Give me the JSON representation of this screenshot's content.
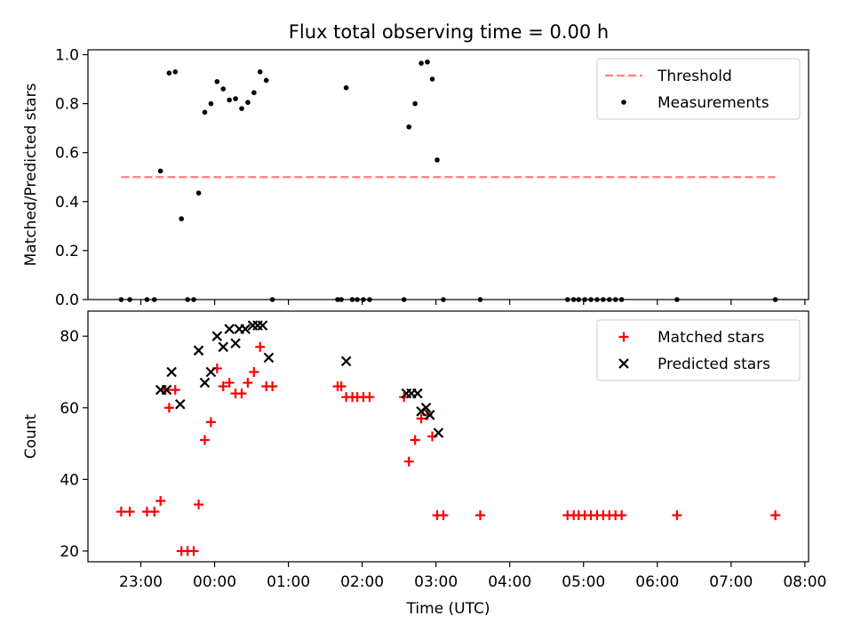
{
  "title": "Flux total observing time = 0.00 h",
  "chart_data": [
    {
      "type": "line+scatter",
      "ylabel": "Matched/Predicted stars",
      "xlabel": "",
      "xlim": [
        "22:17",
        "08:03"
      ],
      "ylim": [
        0,
        1.02
      ],
      "yticks": [
        0.0,
        0.2,
        0.4,
        0.6,
        0.8,
        1.0
      ],
      "ytick_labels": [
        "0.0",
        "0.2",
        "0.4",
        "0.6",
        "0.8",
        "1.0"
      ],
      "legend": {
        "placement": "top-right",
        "entries": [
          "Threshold",
          "Measurements"
        ]
      },
      "series": [
        {
          "name": "Threshold",
          "style": "dashed-line",
          "color": "#ff7f7f",
          "points": [
            [
              "22:44",
              0.5
            ],
            [
              "07:36",
              0.5
            ]
          ]
        },
        {
          "name": "Measurements",
          "style": "dot",
          "color": "#000000",
          "points": [
            [
              "22:44",
              0.0
            ],
            [
              "22:51",
              0.0
            ],
            [
              "23:05",
              0.0
            ],
            [
              "23:11",
              0.0
            ],
            [
              "23:16",
              0.525
            ],
            [
              "23:23",
              0.925
            ],
            [
              "23:28",
              0.93
            ],
            [
              "23:33",
              0.33
            ],
            [
              "23:38",
              0.0
            ],
            [
              "23:43",
              0.0
            ],
            [
              "23:47",
              0.435
            ],
            [
              "23:52",
              0.765
            ],
            [
              "23:57",
              0.8
            ],
            [
              "00:02",
              0.89
            ],
            [
              "00:07",
              0.86
            ],
            [
              "00:12",
              0.815
            ],
            [
              "00:17",
              0.82
            ],
            [
              "00:22",
              0.78
            ],
            [
              "00:27",
              0.805
            ],
            [
              "00:32",
              0.845
            ],
            [
              "00:37",
              0.93
            ],
            [
              "00:42",
              0.895
            ],
            [
              "00:47",
              0.0
            ],
            [
              "01:40",
              0.0
            ],
            [
              "01:43",
              0.0
            ],
            [
              "01:47",
              0.865
            ],
            [
              "01:52",
              0.0
            ],
            [
              "01:56",
              0.0
            ],
            [
              "02:01",
              0.0
            ],
            [
              "02:06",
              0.0
            ],
            [
              "02:34",
              0.0
            ],
            [
              "02:38",
              0.705
            ],
            [
              "02:43",
              0.8
            ],
            [
              "02:48",
              0.965
            ],
            [
              "02:53",
              0.97
            ],
            [
              "02:57",
              0.9
            ],
            [
              "03:01",
              0.57
            ],
            [
              "03:06",
              0.0
            ],
            [
              "03:36",
              0.0
            ],
            [
              "04:47",
              0.0
            ],
            [
              "04:52",
              0.0
            ],
            [
              "04:56",
              0.0
            ],
            [
              "05:01",
              0.0
            ],
            [
              "05:06",
              0.0
            ],
            [
              "05:11",
              0.0
            ],
            [
              "05:16",
              0.0
            ],
            [
              "05:21",
              0.0
            ],
            [
              "05:26",
              0.0
            ],
            [
              "05:31",
              0.0
            ],
            [
              "06:16",
              0.0
            ],
            [
              "07:36",
              0.0
            ]
          ]
        }
      ]
    },
    {
      "type": "scatter",
      "xlabel": "Time (UTC)",
      "ylabel": "Count",
      "xlim": [
        "22:17",
        "08:03"
      ],
      "ylim": [
        17,
        87
      ],
      "yticks": [
        20,
        40,
        60,
        80
      ],
      "ytick_labels": [
        "20",
        "40",
        "60",
        "80"
      ],
      "xticks": [
        "23:00",
        "00:00",
        "01:00",
        "02:00",
        "03:00",
        "04:00",
        "05:00",
        "06:00",
        "07:00",
        "08:00"
      ],
      "legend": {
        "placement": "top-right",
        "entries": [
          "Matched stars",
          "Predicted stars"
        ]
      },
      "series": [
        {
          "name": "Matched stars",
          "marker": "plus",
          "color": "#ff0000",
          "points": [
            [
              "22:44",
              31
            ],
            [
              "22:51",
              31
            ],
            [
              "23:05",
              31
            ],
            [
              "23:11",
              31
            ],
            [
              "23:16",
              34
            ],
            [
              "23:20",
              65
            ],
            [
              "23:23",
              60
            ],
            [
              "23:28",
              65
            ],
            [
              "23:33",
              20
            ],
            [
              "23:38",
              20
            ],
            [
              "23:43",
              20
            ],
            [
              "23:47",
              33
            ],
            [
              "23:52",
              51
            ],
            [
              "23:57",
              56
            ],
            [
              "00:02",
              71
            ],
            [
              "00:07",
              66
            ],
            [
              "00:12",
              67
            ],
            [
              "00:17",
              64
            ],
            [
              "00:22",
              64
            ],
            [
              "00:27",
              67
            ],
            [
              "00:32",
              70
            ],
            [
              "00:37",
              77
            ],
            [
              "00:42",
              66
            ],
            [
              "00:47",
              66
            ],
            [
              "01:40",
              66
            ],
            [
              "01:43",
              66
            ],
            [
              "01:47",
              63
            ],
            [
              "01:52",
              63
            ],
            [
              "01:56",
              63
            ],
            [
              "02:01",
              63
            ],
            [
              "02:06",
              63
            ],
            [
              "02:34",
              63
            ],
            [
              "02:38",
              45
            ],
            [
              "02:43",
              51
            ],
            [
              "02:48",
              57
            ],
            [
              "02:53",
              58
            ],
            [
              "02:57",
              52
            ],
            [
              "03:01",
              30
            ],
            [
              "03:06",
              30
            ],
            [
              "03:36",
              30
            ],
            [
              "04:47",
              30
            ],
            [
              "04:52",
              30
            ],
            [
              "04:56",
              30
            ],
            [
              "05:01",
              30
            ],
            [
              "05:06",
              30
            ],
            [
              "05:11",
              30
            ],
            [
              "05:16",
              30
            ],
            [
              "05:21",
              30
            ],
            [
              "05:26",
              30
            ],
            [
              "05:31",
              30
            ],
            [
              "06:16",
              30
            ],
            [
              "07:36",
              30
            ]
          ]
        },
        {
          "name": "Predicted stars",
          "marker": "x",
          "color": "#000000",
          "points": [
            [
              "23:16",
              65
            ],
            [
              "23:21",
              65
            ],
            [
              "23:25",
              70
            ],
            [
              "23:32",
              61
            ],
            [
              "23:47",
              76
            ],
            [
              "23:52",
              67
            ],
            [
              "23:57",
              70
            ],
            [
              "00:02",
              80
            ],
            [
              "00:07",
              77
            ],
            [
              "00:12",
              82
            ],
            [
              "00:17",
              78
            ],
            [
              "00:20",
              82
            ],
            [
              "00:25",
              82
            ],
            [
              "00:31",
              83
            ],
            [
              "00:35",
              83
            ],
            [
              "00:39",
              83
            ],
            [
              "00:44",
              74
            ],
            [
              "01:47",
              73
            ],
            [
              "02:36",
              64
            ],
            [
              "02:40",
              64
            ],
            [
              "02:45",
              64
            ],
            [
              "02:48",
              59
            ],
            [
              "02:52",
              60
            ],
            [
              "02:55",
              58
            ],
            [
              "03:02",
              53
            ]
          ]
        }
      ]
    }
  ]
}
